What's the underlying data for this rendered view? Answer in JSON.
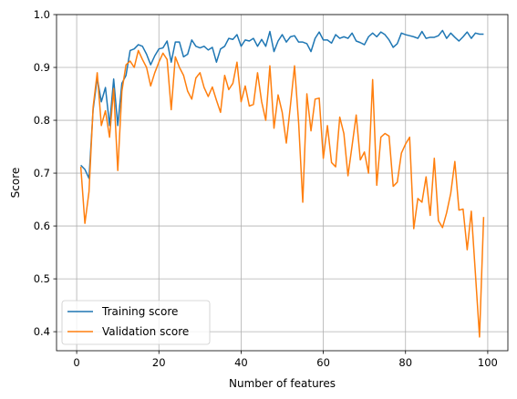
{
  "chart_data": {
    "type": "line",
    "title": "",
    "xlabel": "Number of features",
    "ylabel": "Score",
    "xlim": [
      -4.9,
      104.9
    ],
    "ylim": [
      0.364,
      1.0
    ],
    "x_ticks": [
      0,
      20,
      40,
      60,
      80,
      100
    ],
    "y_ticks": [
      0.4,
      0.5,
      0.6,
      0.7,
      0.8,
      0.9,
      1.0
    ],
    "x_tick_labels": [
      "0",
      "20",
      "40",
      "60",
      "80",
      "100"
    ],
    "y_tick_labels": [
      "0.4",
      "0.5",
      "0.6",
      "0.7",
      "0.8",
      "0.9",
      "1.0"
    ],
    "grid": true,
    "legend_position": "lower-left",
    "x": [
      1,
      2,
      3,
      4,
      5,
      6,
      7,
      8,
      9,
      10,
      11,
      12,
      13,
      14,
      15,
      16,
      17,
      18,
      19,
      20,
      21,
      22,
      23,
      24,
      25,
      26,
      27,
      28,
      29,
      30,
      31,
      32,
      33,
      34,
      35,
      36,
      37,
      38,
      39,
      40,
      41,
      42,
      43,
      44,
      45,
      46,
      47,
      48,
      49,
      50,
      51,
      52,
      53,
      54,
      55,
      56,
      57,
      58,
      59,
      60,
      61,
      62,
      63,
      64,
      65,
      66,
      67,
      68,
      69,
      70,
      71,
      72,
      73,
      74,
      75,
      76,
      77,
      78,
      79,
      80,
      81,
      82,
      83,
      84,
      85,
      86,
      87,
      88,
      89,
      90,
      91,
      92,
      93,
      94,
      95,
      96,
      97,
      98,
      99
    ],
    "series": [
      {
        "name": "Training score",
        "color": "#1f77b4",
        "values": [
          0.715,
          0.707,
          0.69,
          0.82,
          0.88,
          0.835,
          0.862,
          0.79,
          0.878,
          0.79,
          0.87,
          0.885,
          0.932,
          0.935,
          0.943,
          0.94,
          0.925,
          0.905,
          0.922,
          0.935,
          0.937,
          0.95,
          0.91,
          0.948,
          0.948,
          0.92,
          0.925,
          0.952,
          0.94,
          0.937,
          0.94,
          0.933,
          0.938,
          0.91,
          0.935,
          0.94,
          0.955,
          0.953,
          0.962,
          0.94,
          0.952,
          0.95,
          0.955,
          0.94,
          0.953,
          0.94,
          0.968,
          0.93,
          0.95,
          0.962,
          0.948,
          0.958,
          0.96,
          0.948,
          0.948,
          0.945,
          0.93,
          0.955,
          0.967,
          0.952,
          0.952,
          0.946,
          0.962,
          0.955,
          0.958,
          0.955,
          0.965,
          0.95,
          0.947,
          0.943,
          0.958,
          0.965,
          0.958,
          0.967,
          0.962,
          0.952,
          0.938,
          0.945,
          0.965,
          0.962,
          0.96,
          0.958,
          0.955,
          0.968,
          0.955,
          0.957,
          0.957,
          0.96,
          0.97,
          0.955,
          0.965,
          0.957,
          0.95,
          0.958,
          0.967,
          0.955,
          0.965,
          0.963,
          0.963
        ]
      },
      {
        "name": "Validation score",
        "color": "#ff7f0e",
        "values": [
          0.712,
          0.605,
          0.665,
          0.825,
          0.89,
          0.79,
          0.818,
          0.768,
          0.86,
          0.705,
          0.855,
          0.905,
          0.912,
          0.9,
          0.932,
          0.915,
          0.9,
          0.865,
          0.89,
          0.91,
          0.927,
          0.915,
          0.82,
          0.92,
          0.9,
          0.885,
          0.855,
          0.84,
          0.88,
          0.89,
          0.862,
          0.845,
          0.863,
          0.838,
          0.815,
          0.885,
          0.858,
          0.87,
          0.91,
          0.835,
          0.865,
          0.827,
          0.83,
          0.89,
          0.835,
          0.8,
          0.903,
          0.785,
          0.848,
          0.815,
          0.757,
          0.828,
          0.903,
          0.795,
          0.645,
          0.85,
          0.78,
          0.84,
          0.842,
          0.728,
          0.79,
          0.72,
          0.712,
          0.806,
          0.775,
          0.695,
          0.752,
          0.81,
          0.725,
          0.74,
          0.7,
          0.877,
          0.677,
          0.768,
          0.775,
          0.77,
          0.675,
          0.683,
          0.738,
          0.755,
          0.768,
          0.595,
          0.652,
          0.645,
          0.693,
          0.62,
          0.728,
          0.61,
          0.597,
          0.625,
          0.662,
          0.722,
          0.63,
          0.632,
          0.555,
          0.628,
          0.51,
          0.39,
          0.617
        ]
      }
    ]
  }
}
